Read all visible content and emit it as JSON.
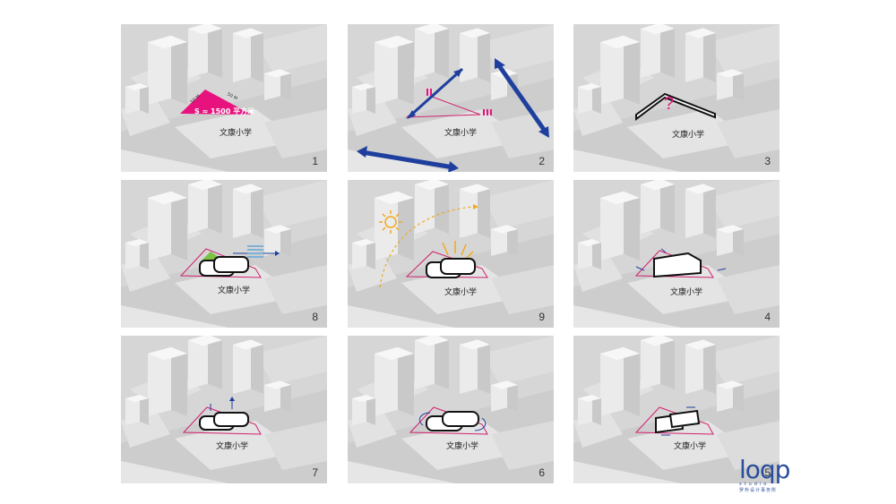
{
  "panels": [
    {
      "number": "1",
      "school_label": "文康小学",
      "area_label": "S ≈ 1500 平方米",
      "dim_a": "50 M",
      "dim_b": "50 M"
    },
    {
      "number": "2",
      "school_label": "文康小学"
    },
    {
      "number": "3",
      "school_label": "文康小学",
      "question": "?"
    },
    {
      "number": "8",
      "school_label": "文康小学"
    },
    {
      "number": "9",
      "school_label": "文康小学"
    },
    {
      "number": "4",
      "school_label": "文康小学"
    },
    {
      "number": "7",
      "school_label": "文康小学"
    },
    {
      "number": "6",
      "school_label": "文康小学"
    },
    {
      "number": "5",
      "school_label": "文康小学"
    }
  ],
  "logo": {
    "word": "loqp",
    "studio": "studio",
    "subtitle": "罗朴设计事务所"
  },
  "colors": {
    "site_outline": "#d0206f",
    "magenta": "#e8127e",
    "arrow_blue": "#1f3f9e",
    "sun": "#f2a81d",
    "green": "#7cc242",
    "background": "#d6d6d6"
  }
}
